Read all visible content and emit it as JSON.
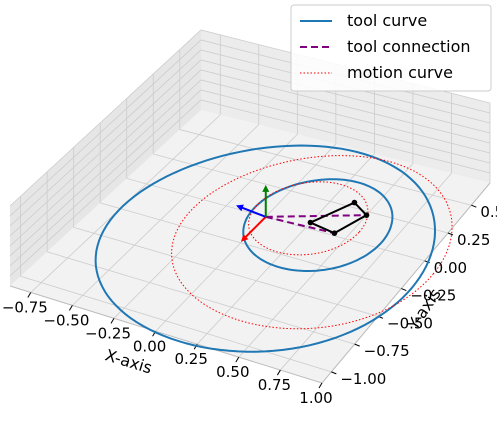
{
  "chart_data": {
    "type": "line",
    "projection": "3d",
    "title": "",
    "xlabel": "X-axis",
    "ylabel": "Y-axis",
    "zlabel": "",
    "xlim": [
      -0.875,
      1.0
    ],
    "ylim": [
      -1.1,
      0.7
    ],
    "x_ticks": [
      -0.75,
      -0.5,
      -0.25,
      0.0,
      0.25,
      0.5,
      0.75,
      1.0
    ],
    "x_tick_labels": [
      "−0.75",
      "−0.50",
      "−0.25",
      "0.00",
      "0.25",
      "0.50",
      "0.75",
      "1.00"
    ],
    "y_ticks": [
      -1.0,
      -0.75,
      -0.5,
      -0.25,
      0.0,
      0.25,
      0.5
    ],
    "y_tick_labels": [
      "−1.00",
      "−0.75",
      "−0.50",
      "−0.25",
      "0.00",
      "0.25",
      "0.50"
    ],
    "grid": true,
    "legend_position": "top-right",
    "series": [
      {
        "name": "tool curve",
        "style": "solid",
        "color": "#1f77b4",
        "curves": [
          {
            "center": [
              0.15,
              -0.22
            ],
            "radius": 0.9
          },
          {
            "center": [
              0.3,
              0.05
            ],
            "radius": 0.4
          }
        ]
      },
      {
        "name": "tool connection",
        "style": "dashed",
        "color": "#800080",
        "segments": [
          [
            [
              0.0,
              0.0
            ],
            [
              0.42,
              0.02
            ]
          ],
          [
            [
              0.0,
              0.0
            ],
            [
              0.5,
              0.22
            ]
          ]
        ]
      },
      {
        "name": "motion curve",
        "style": "dotted",
        "color": "#ff0000",
        "curves": [
          {
            "center": [
              0.35,
              -0.08
            ],
            "radius": 0.75
          },
          {
            "center": [
              0.22,
              0.08
            ],
            "radius": 0.32
          }
        ]
      }
    ],
    "linkage": {
      "color": "#000000",
      "points": [
        [
          0.42,
          0.02
        ],
        [
          0.5,
          0.22
        ],
        [
          0.38,
          0.29
        ],
        [
          0.25,
          0.05
        ]
      ]
    },
    "frame_axes": [
      {
        "name": "x",
        "color": "#ff0000"
      },
      {
        "name": "y",
        "color": "#0000ff"
      },
      {
        "name": "z",
        "color": "#008000"
      }
    ]
  }
}
